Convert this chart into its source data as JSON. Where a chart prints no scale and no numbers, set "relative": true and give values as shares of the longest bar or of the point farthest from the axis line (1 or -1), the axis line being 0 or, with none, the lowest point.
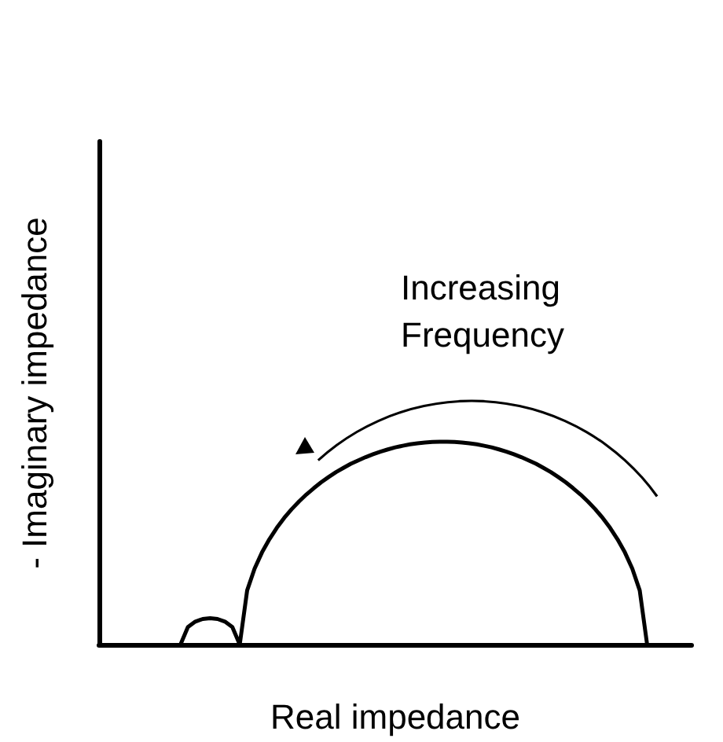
{
  "chart_data": {
    "type": "line",
    "relative": true,
    "xlabel": "Real impedance",
    "ylabel": "- Imaginary impedance",
    "annotations": [
      "Increasing\nFrequency"
    ],
    "grid": false,
    "line_style": "solid",
    "categories": [
      null,
      null,
      null,
      null,
      null,
      null,
      null,
      null,
      null,
      null,
      null,
      null,
      null,
      null,
      null,
      null,
      null,
      null,
      null,
      null,
      null,
      null,
      null,
      null,
      null,
      null,
      null,
      null,
      null,
      null,
      null,
      null,
      null,
      null,
      null,
      null,
      null,
      null,
      null,
      null,
      null,
      null,
      null,
      null,
      null,
      null,
      null,
      null,
      null,
      null,
      null,
      null,
      null,
      null,
      null,
      null,
      null,
      null,
      null,
      null,
      null,
      null,
      null,
      null,
      null,
      null,
      null,
      null,
      null,
      null,
      null,
      null,
      null,
      null,
      null,
      null,
      null,
      null,
      null,
      null,
      null
    ],
    "series": [
      {
        "color": "#000000",
        "values": [
          null,
          null,
          null,
          null,
          null,
          null,
          null,
          null,
          null,
          null,
          null,
          0,
          0.086,
          0.113,
          0.126,
          0.13,
          0.126,
          0.113,
          0.086,
          0,
          0.267,
          0.374,
          0.454,
          0.519,
          0.575,
          0.624,
          0.667,
          0.705,
          0.74,
          0.771,
          0.8,
          0.826,
          0.85,
          0.871,
          0.891,
          0.908,
          0.924,
          0.938,
          0.951,
          0.962,
          0.972,
          0.98,
          0.987,
          0.992,
          0.996,
          0.999,
          1,
          1,
          0.999,
          0.996,
          0.992,
          0.987,
          0.98,
          0.972,
          0.962,
          0.951,
          0.938,
          0.924,
          0.908,
          0.891,
          0.871,
          0.85,
          0.826,
          0.8,
          0.771,
          0.74,
          0.705,
          0.667,
          0.624,
          0.575,
          0.519,
          0.454,
          0.374,
          0.267,
          0,
          null,
          null,
          null,
          null,
          null,
          null
        ]
      }
    ]
  }
}
